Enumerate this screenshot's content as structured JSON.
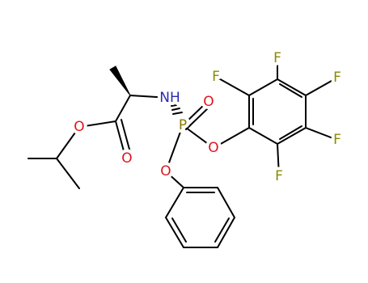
{
  "atoms": [
    "NH",
    "O",
    "P",
    "O",
    "O",
    "O",
    "O",
    "F",
    "F",
    "F",
    "F",
    "F"
  ]
}
